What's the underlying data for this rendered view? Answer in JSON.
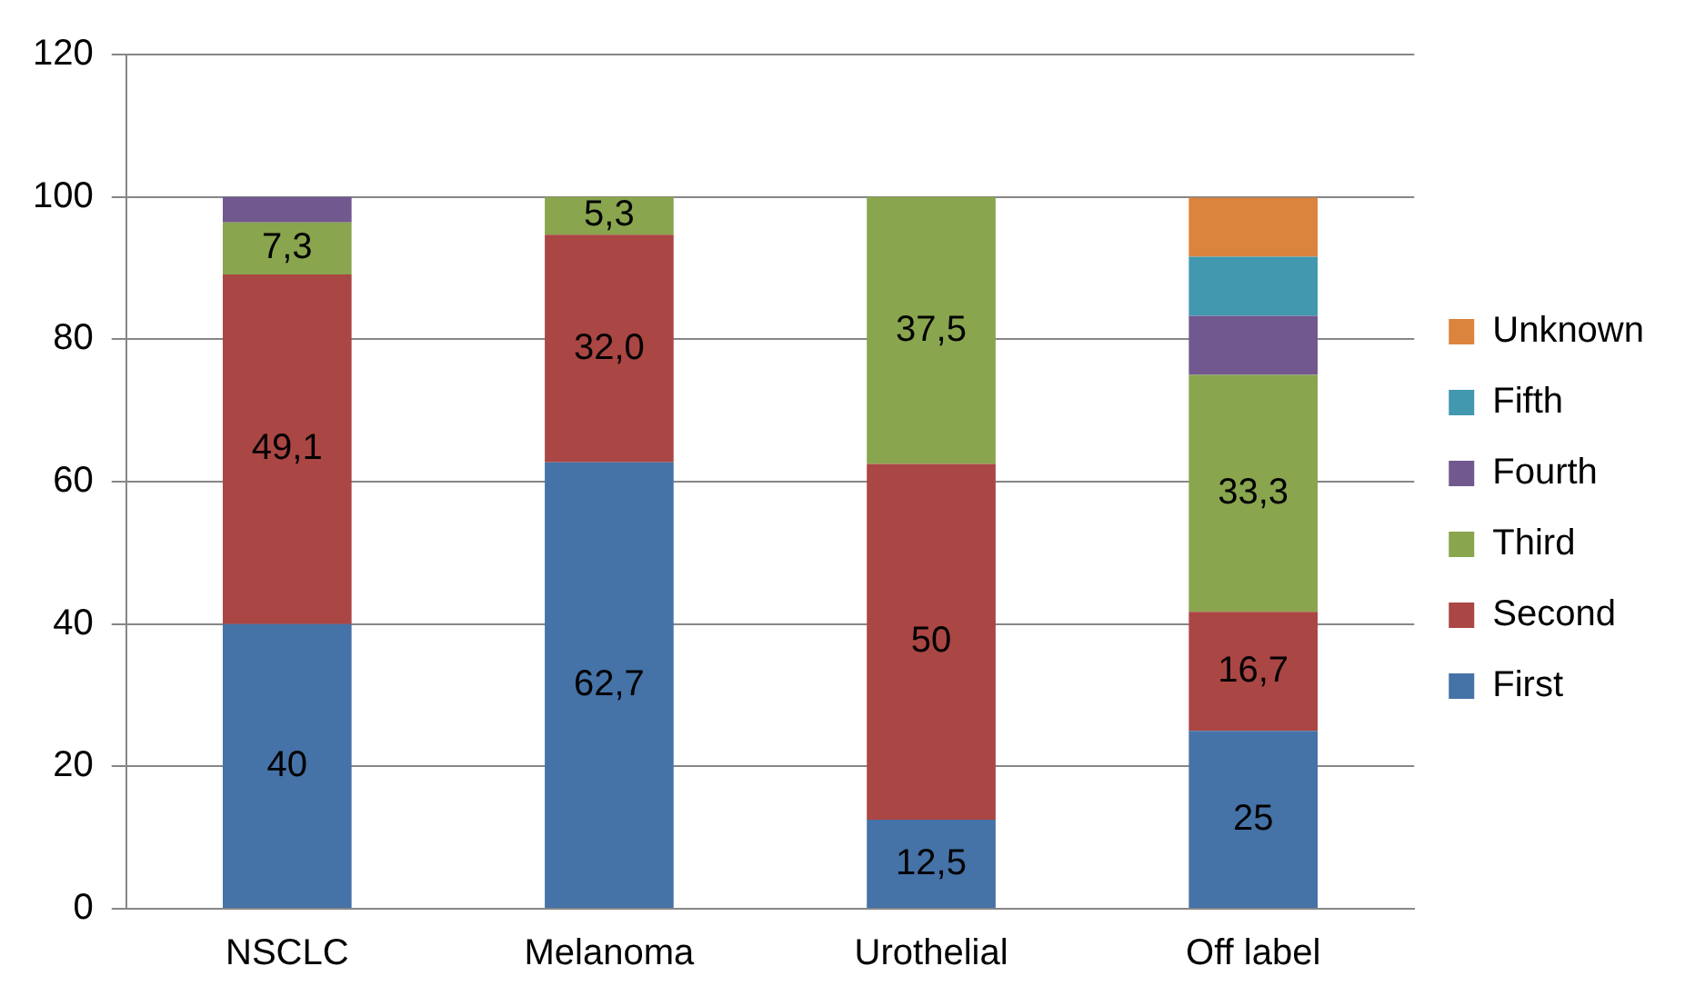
{
  "chart_data": {
    "type": "bar",
    "stacked": true,
    "categories": [
      "NSCLC",
      "Melanoma",
      "Urothelial",
      "Off label"
    ],
    "series": [
      {
        "name": "First",
        "color": "#4572a7",
        "values": [
          40,
          62.7,
          12.5,
          25
        ],
        "value_labels": [
          "40",
          "62,7",
          "12,5",
          "25"
        ]
      },
      {
        "name": "Second",
        "color": "#aa4643",
        "values": [
          49.1,
          32.0,
          50,
          16.7
        ],
        "value_labels": [
          "49,1",
          "32,0",
          "50",
          "16,7"
        ]
      },
      {
        "name": "Third",
        "color": "#89a54e",
        "values": [
          7.3,
          5.3,
          37.5,
          33.3
        ],
        "value_labels": [
          "7,3",
          "5,3",
          "37,5",
          "33,3"
        ]
      },
      {
        "name": "Fourth",
        "color": "#71588f",
        "values": [
          3.6,
          null,
          null,
          8.3
        ]
      },
      {
        "name": "Fifth",
        "color": "#4198af",
        "values": [
          null,
          null,
          null,
          8.3
        ]
      },
      {
        "name": "Unknown",
        "color": "#db843d",
        "values": [
          null,
          null,
          null,
          8.3
        ]
      }
    ],
    "ylim": [
      0,
      120
    ],
    "yticks": [
      0,
      20,
      40,
      60,
      80,
      100,
      120
    ],
    "grid": "y",
    "legend": "right"
  }
}
